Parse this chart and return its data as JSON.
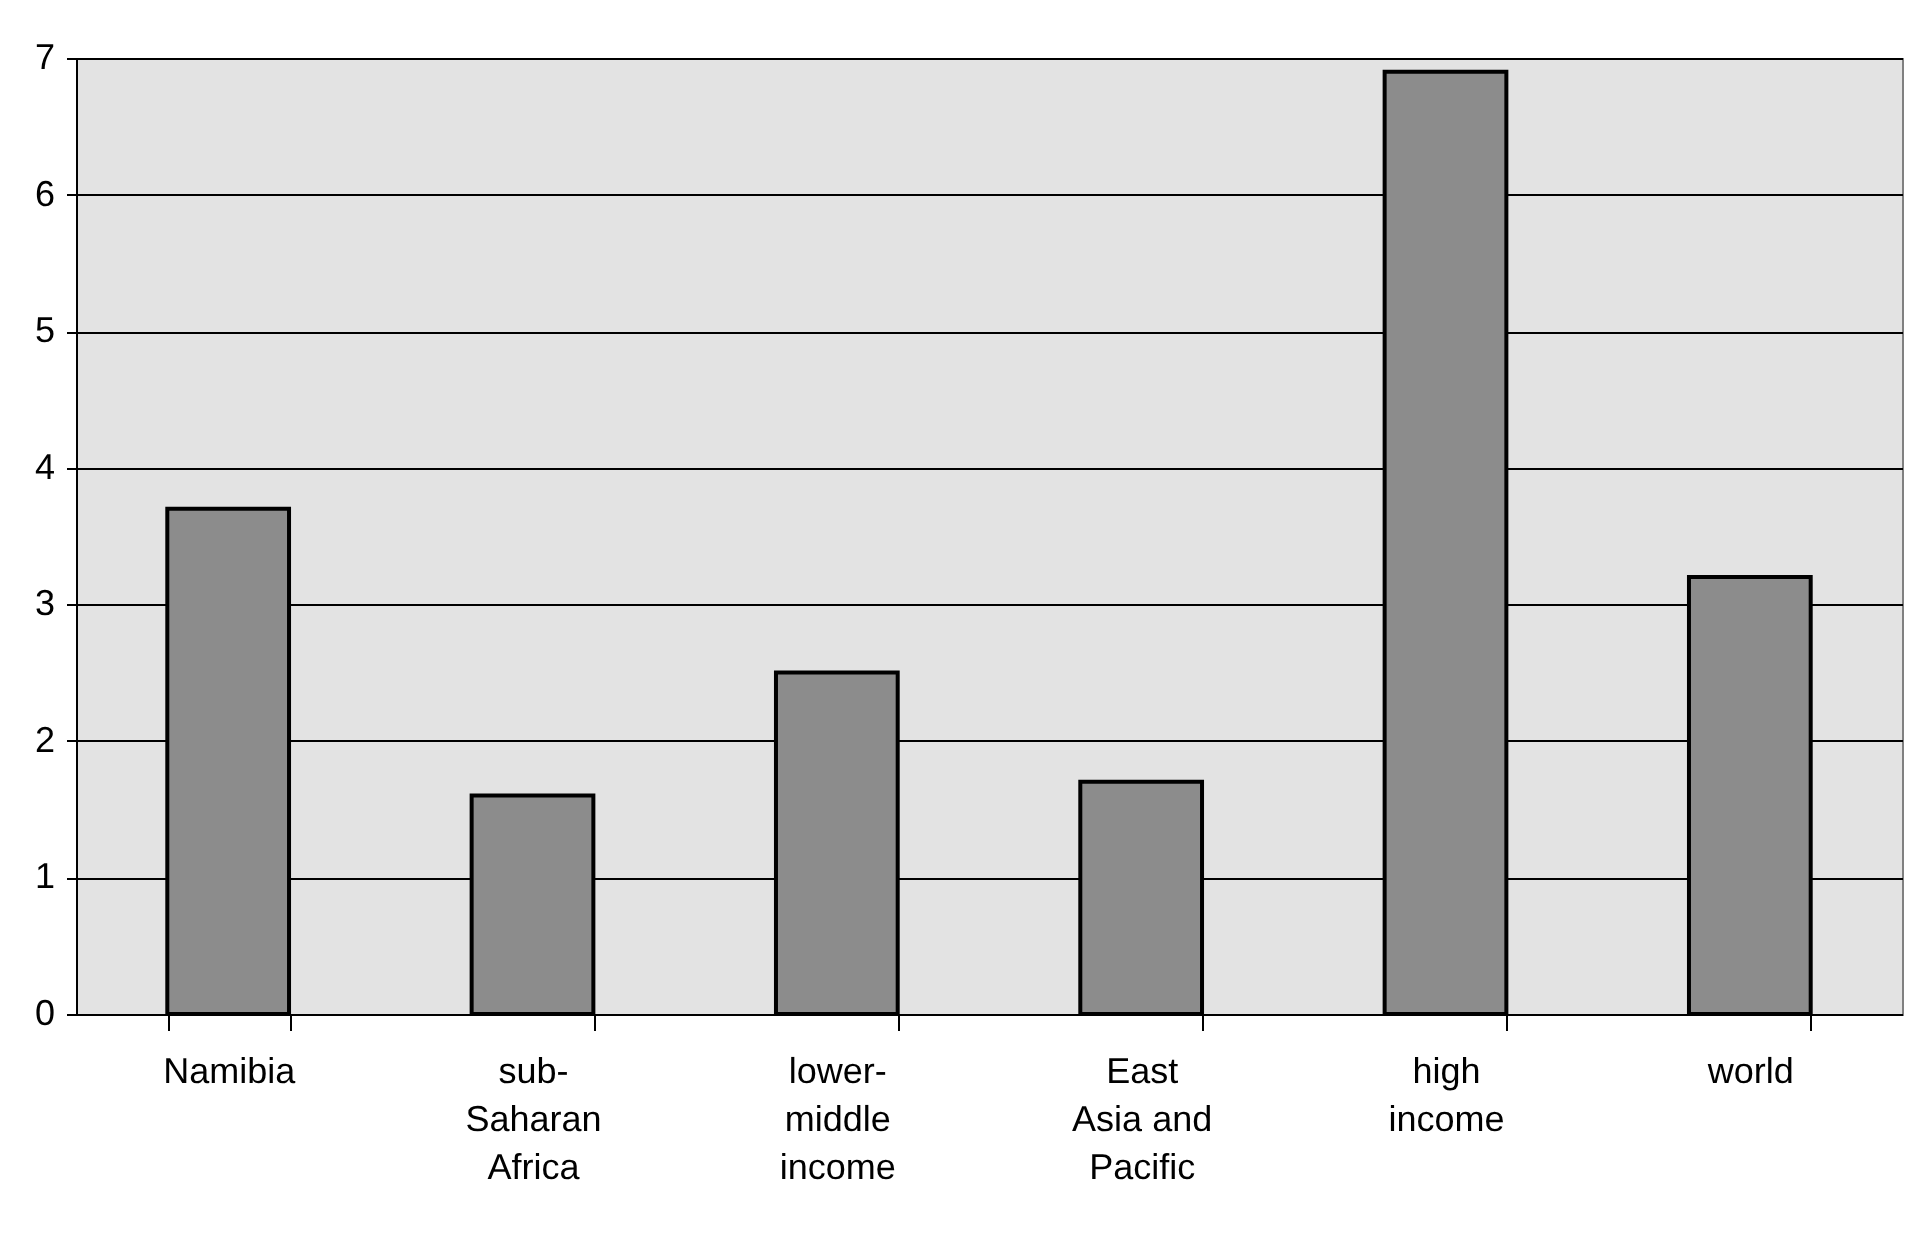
{
  "chart_data": {
    "type": "bar",
    "categories": [
      "Namibia",
      "sub-Saharan Africa",
      "lower-middle income",
      "East Asia and Pacific",
      "high income",
      "world"
    ],
    "values": [
      3.7,
      1.6,
      2.5,
      1.7,
      6.9,
      3.2
    ],
    "color": "#8c8c8c",
    "ylim": [
      0,
      7
    ],
    "yticks": [
      0,
      1,
      2,
      3,
      4,
      5,
      6,
      7
    ],
    "grid": "y"
  }
}
